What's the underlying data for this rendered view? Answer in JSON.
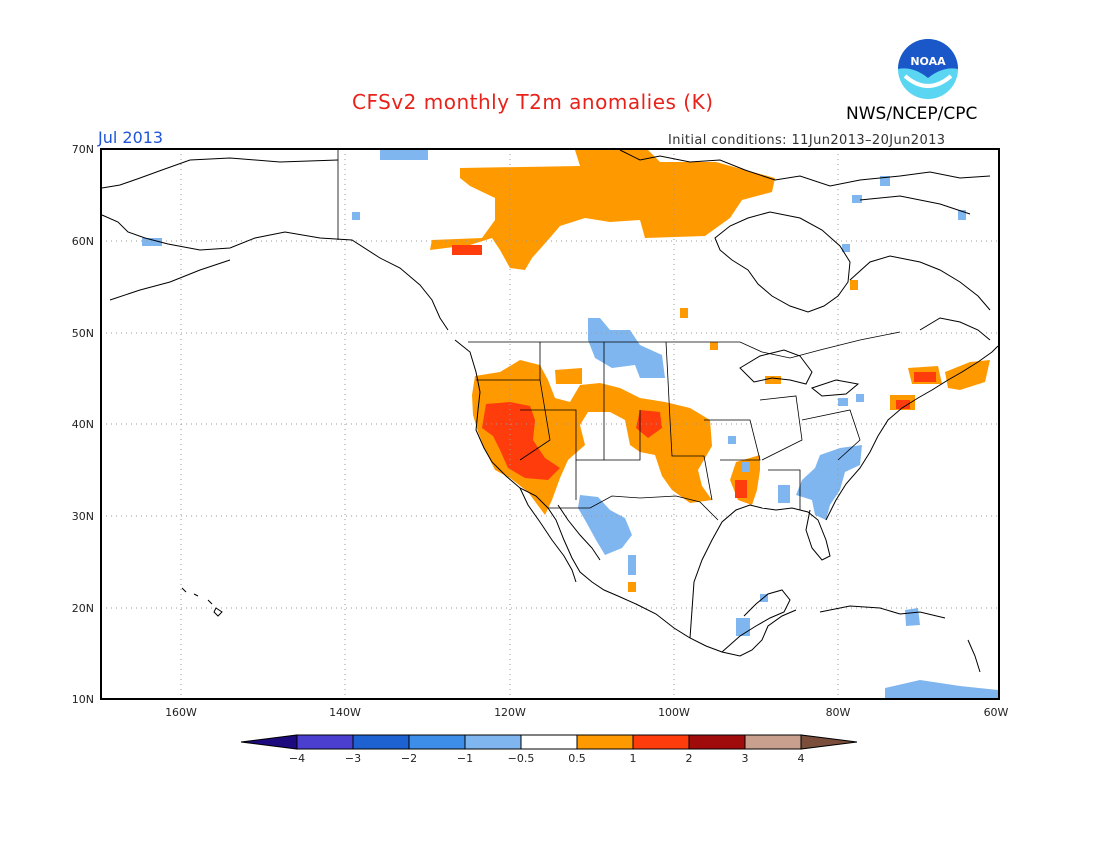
{
  "header": {
    "title": "CFSv2 monthly T2m anomalies (K)",
    "month": "Jul 2013",
    "initial_conditions": "Initial conditions: 11Jun2013–20Jun2013",
    "agency": "NWS/NCEP/CPC",
    "logo_text": "NOAA"
  },
  "map": {
    "lon_range": [
      -172,
      -60
    ],
    "lat_range": [
      10,
      70
    ],
    "lat_labels": [
      "70N",
      "60N",
      "50N",
      "40N",
      "30N",
      "20N",
      "10N"
    ],
    "lon_labels": [
      "160W",
      "140W",
      "120W",
      "100W",
      "80W",
      "60W"
    ],
    "anomaly_regions": [
      {
        "name": "Canada north (Nunavut/NWT)",
        "class": "0.5 to 1"
      },
      {
        "name": "US West (CA/NV/OR/ID/UT/AZ)",
        "class": "0.5 to 2"
      },
      {
        "name": "Colorado / Kansas / Oklahoma",
        "class": "0.5 to 2"
      },
      {
        "name": "New England",
        "class": "1 to 2"
      },
      {
        "name": "Northern Plains (MT/ND/SD)",
        "class": "-1 to -0.5"
      },
      {
        "name": "Mexico northwest",
        "class": "-1 to -0.5"
      },
      {
        "name": "US Southeast",
        "class": "-1 to -0.5"
      },
      {
        "name": "Caribbean",
        "class": "-1 to -0.5"
      }
    ]
  },
  "colorbar": {
    "labels": [
      "−4",
      "−3",
      "−2",
      "−1",
      "−0.5",
      "0.5",
      "1",
      "2",
      "3",
      "4"
    ],
    "colors": [
      "#1c0a7e",
      "#4b3fd0",
      "#1e62d2",
      "#3d8ee8",
      "#7fb6f0",
      "#ffffff",
      "#ff9900",
      "#ff3c0c",
      "#a00b0b",
      "#c9a08e",
      "#7a4e3a"
    ]
  },
  "colors": {
    "title": "#e8221b",
    "month": "#1e55d8",
    "noaa_blue": "#1a57c8",
    "noaa_cyan": "#5bd6f2"
  }
}
